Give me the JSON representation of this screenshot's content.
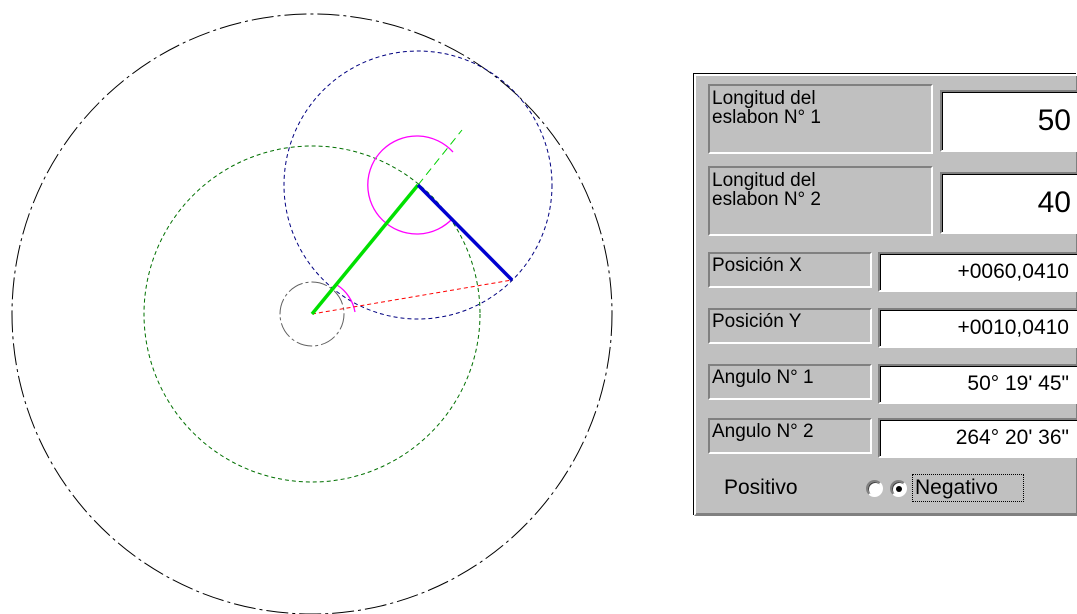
{
  "panel": {
    "link1": {
      "label_line1": "Longitud del",
      "label_line2": "eslabon N° 1",
      "value": "50"
    },
    "link2": {
      "label_line1": "Longitud del",
      "label_line2": "eslabon N° 2",
      "value": "40"
    },
    "pos_x": {
      "label": "Posición X",
      "value": "+0060,0410"
    },
    "pos_y": {
      "label": "Posición Y",
      "value": "+0010,0410"
    },
    "angle1": {
      "label": "Angulo N° 1",
      "value": "50°  19'  45\""
    },
    "angle2": {
      "label": "Angulo N° 2",
      "value": "264°  20'  36\""
    },
    "direction": {
      "positive_label": "Positivo",
      "negative_label": "Negativo",
      "selected": "Negativo"
    }
  },
  "drawing": {
    "colors": {
      "workspace_outer": "#000000",
      "link1_reach": "#007000",
      "link2_reach": "#000080",
      "link1": "#00e000",
      "link2": "#0000d0",
      "angle_arc": "#ff00ff",
      "target_line": "#ff0000",
      "extension": "#00d000",
      "inner_circle": "#606060"
    }
  }
}
